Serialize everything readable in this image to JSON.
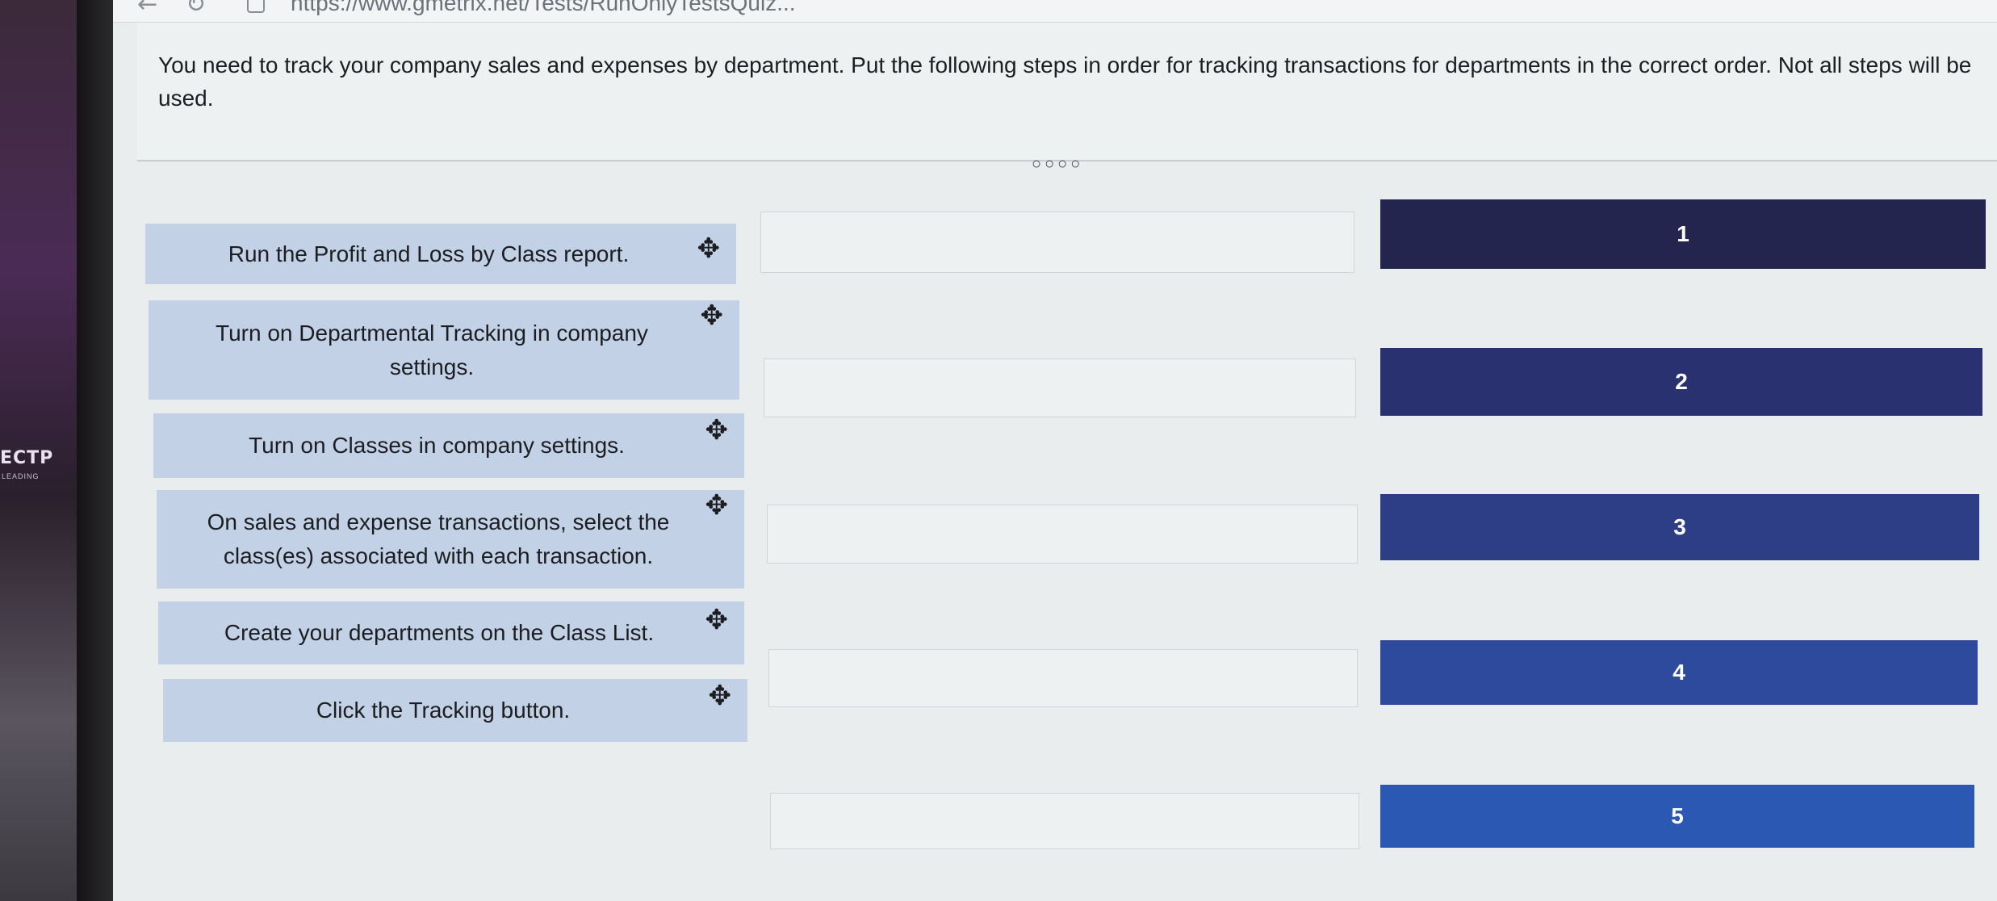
{
  "browser": {
    "url": "https://www.gmetrix.net/Tests/RunOnlyTestsQuiz..."
  },
  "question": {
    "text": "You need to track your company sales and expenses by department. Put the following steps in order for tracking transactions for departments in the correct order. Not all steps will be used.",
    "progress_dots": "○○○○"
  },
  "steps": [
    {
      "label": "Run the Profit and Loss by Class report."
    },
    {
      "label": "Turn on Departmental Tracking in company settings."
    },
    {
      "label": "Turn on Classes in company settings."
    },
    {
      "label": "On sales and expense transactions, select the class(es) associated with each transaction."
    },
    {
      "label": "Create your departments on the Class List."
    },
    {
      "label": "Click the Tracking button."
    }
  ],
  "targets": [
    {
      "label": "1",
      "color": "#24254f"
    },
    {
      "label": "2",
      "color": "#2a3170"
    },
    {
      "label": "3",
      "color": "#2d3d86"
    },
    {
      "label": "4",
      "color": "#2d4a9c"
    },
    {
      "label": "5",
      "color": "#2a58b2"
    }
  ],
  "icons": {
    "move": "✥",
    "back": "←",
    "reload": "↻"
  },
  "bezel": {
    "logo": "ECTP",
    "logo_sub": "LEADING"
  }
}
